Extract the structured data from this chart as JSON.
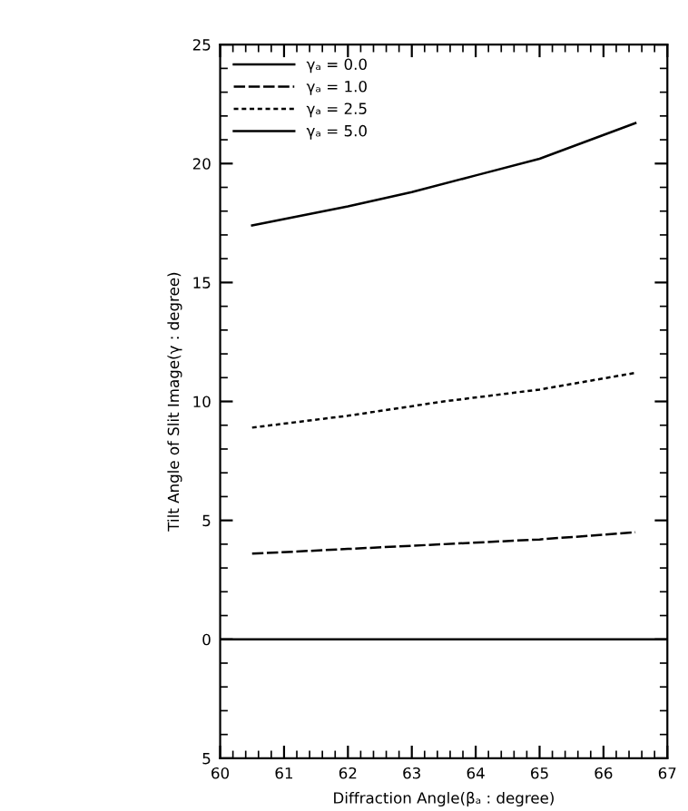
{
  "chart_data": {
    "type": "line",
    "xlabel": "Diffraction Angle(βₐ : degree)",
    "ylabel": "Tilt Angle of Slit Image(γ : degree)",
    "series": [
      {
        "name": "γₐ = 0.0",
        "color": "#000000",
        "line_style": "solid",
        "x": [
          60,
          67
        ],
        "values": [
          0,
          0
        ]
      },
      {
        "name": "γₐ = 1.0",
        "color": "#000000",
        "line_style": "dashed",
        "x": [
          60.5,
          62,
          63.5,
          65,
          66.5
        ],
        "values": [
          3.6,
          3.8,
          4.0,
          4.2,
          4.5
        ]
      },
      {
        "name": "γₐ = 2.5",
        "color": "#000000",
        "line_style": "dotted",
        "x": [
          60.5,
          62,
          63.5,
          65,
          66.5
        ],
        "values": [
          8.9,
          9.4,
          10.0,
          10.5,
          11.2
        ]
      },
      {
        "name": "γₐ = 5.0",
        "color": "#000000",
        "line_style": "solid",
        "x": [
          60.5,
          62,
          63,
          64,
          65,
          66.5
        ],
        "values": [
          17.4,
          18.2,
          18.8,
          19.5,
          20.2,
          21.7
        ]
      }
    ],
    "xlim": [
      60,
      67
    ],
    "xticks": [
      60,
      61,
      62,
      63,
      64,
      65,
      66,
      67
    ],
    "ylim": [
      -5,
      25
    ],
    "yticks": [
      {
        "value": -5,
        "label": "5"
      },
      0,
      5,
      10,
      15,
      20,
      25
    ],
    "grid": false,
    "legend": "top left"
  }
}
